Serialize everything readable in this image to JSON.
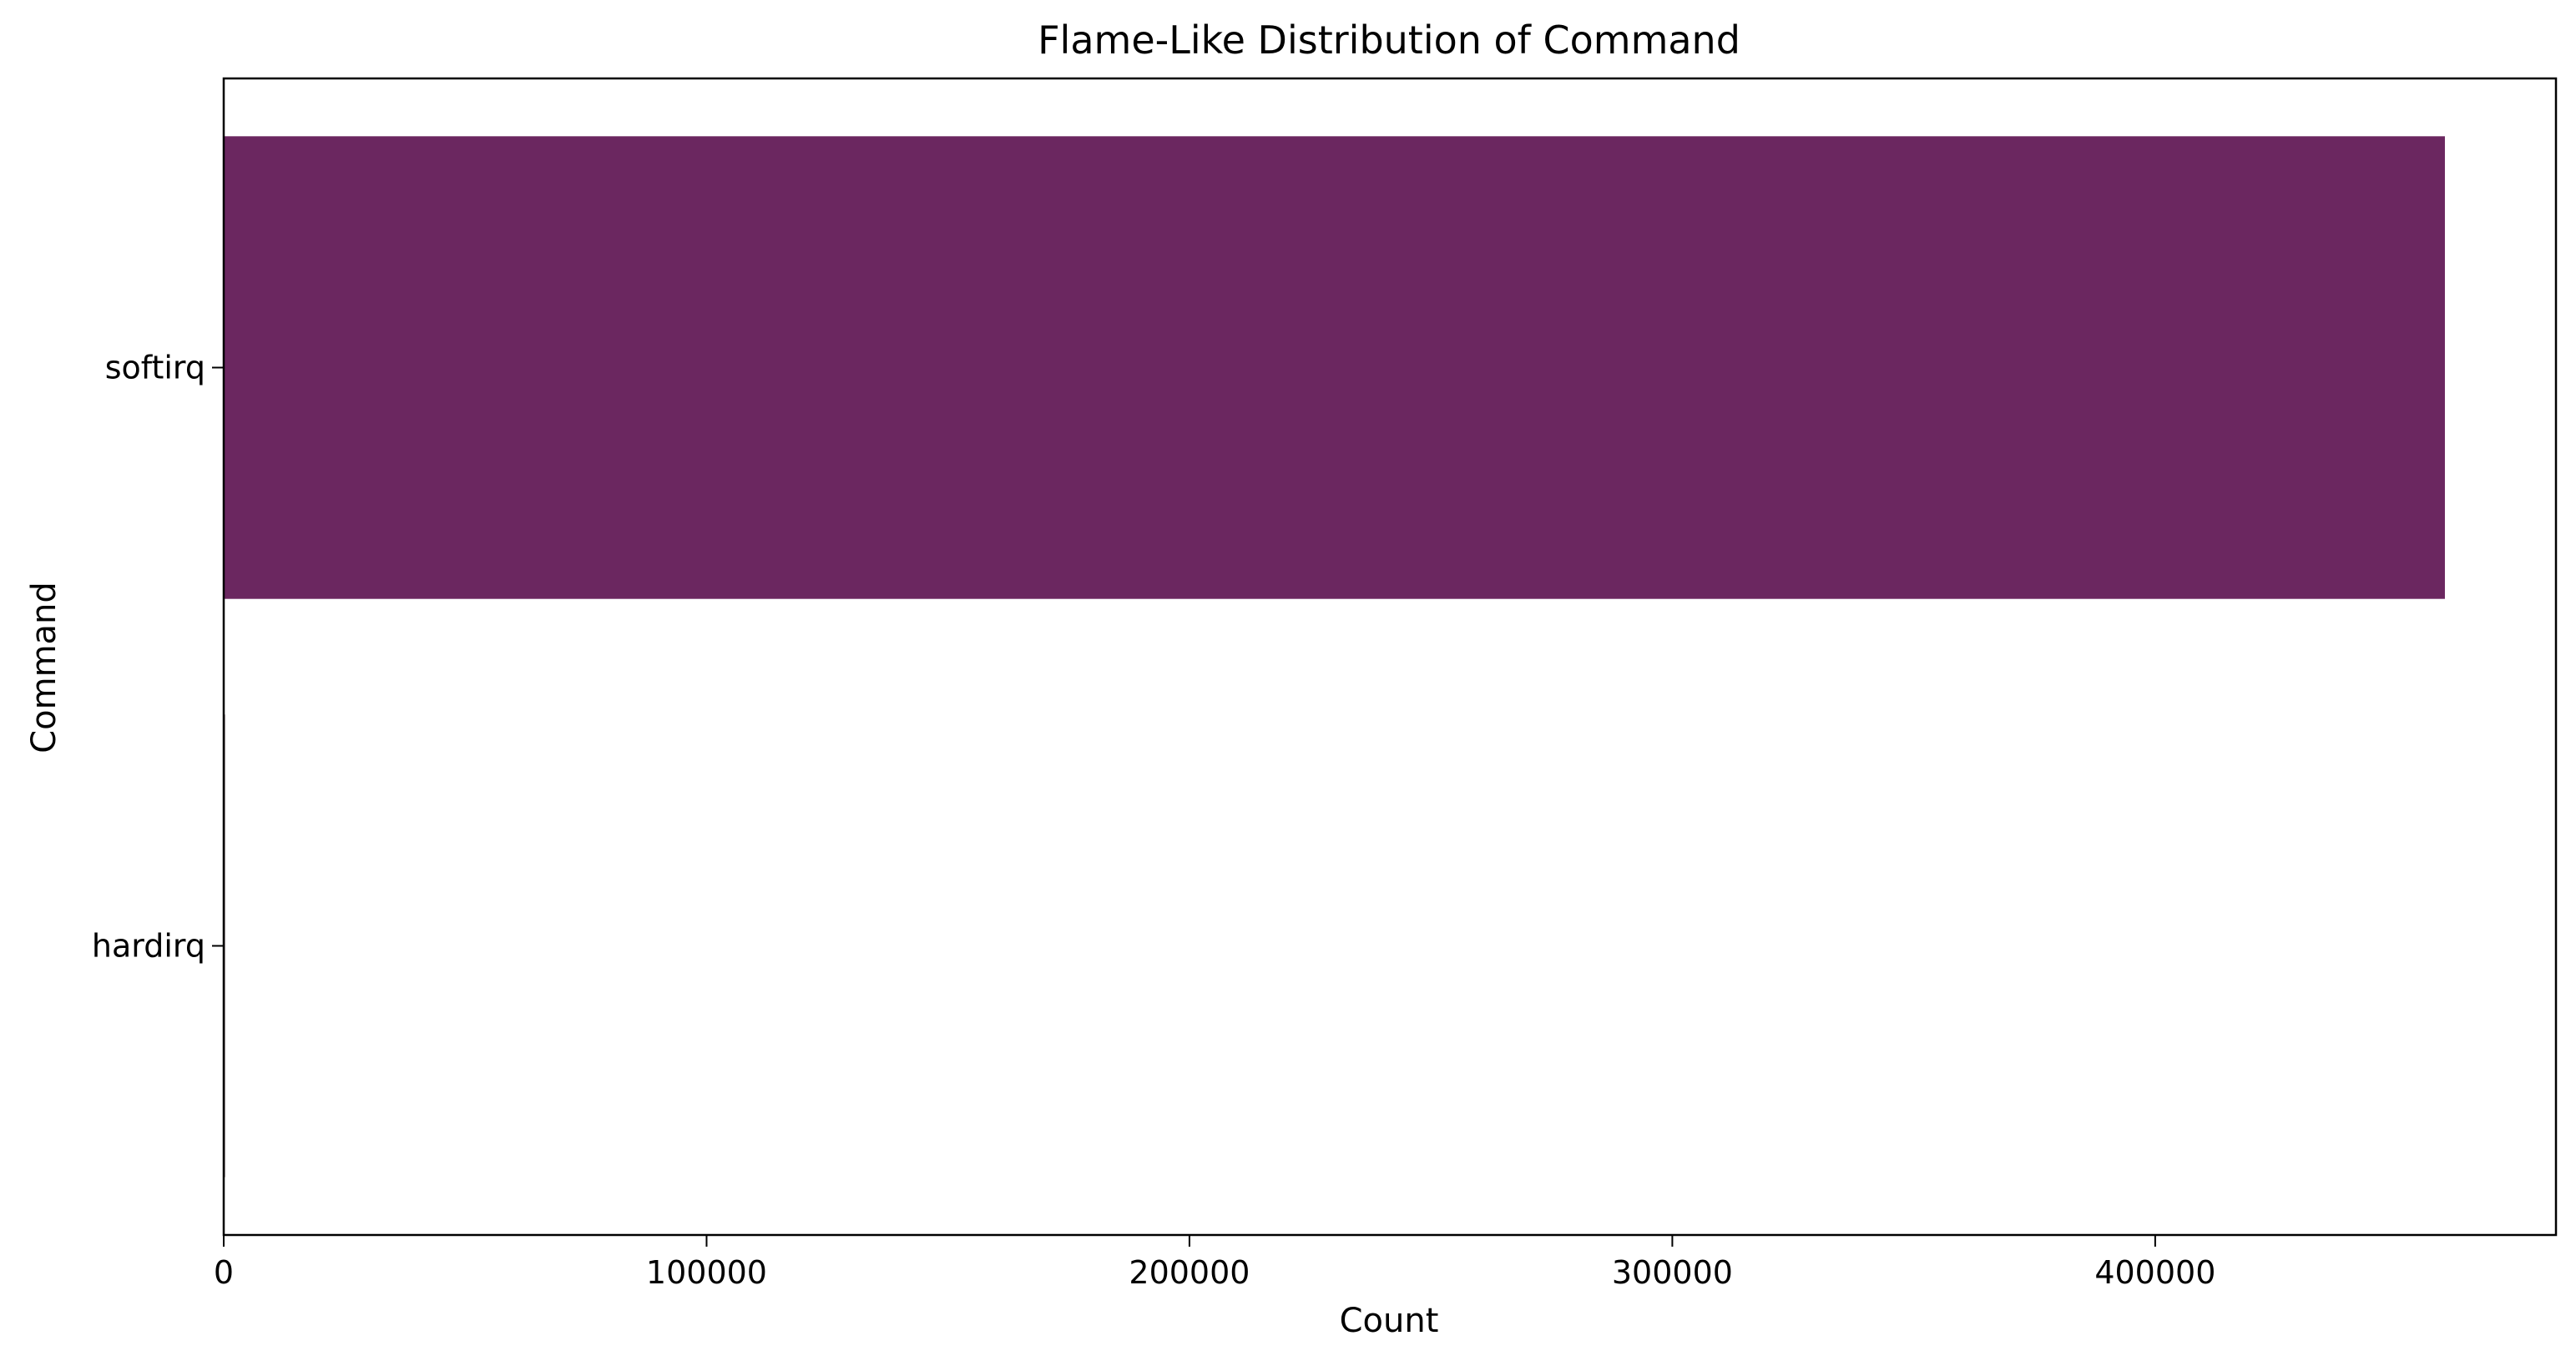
{
  "chart_data": {
    "type": "bar",
    "orientation": "horizontal",
    "title": "Flame-Like Distribution of Command",
    "xlabel": "Count",
    "ylabel": "Command",
    "categories": [
      "softirq",
      "hardirq"
    ],
    "values": [
      460000,
      20
    ],
    "colors": [
      "#6b2760",
      "#2a0c10"
    ],
    "xlim": [
      0,
      483000
    ],
    "xticks": [
      0,
      100000,
      200000,
      300000,
      400000
    ],
    "xtick_labels": [
      "0",
      "100000",
      "200000",
      "300000",
      "400000"
    ],
    "grid": false,
    "legend": "none"
  }
}
